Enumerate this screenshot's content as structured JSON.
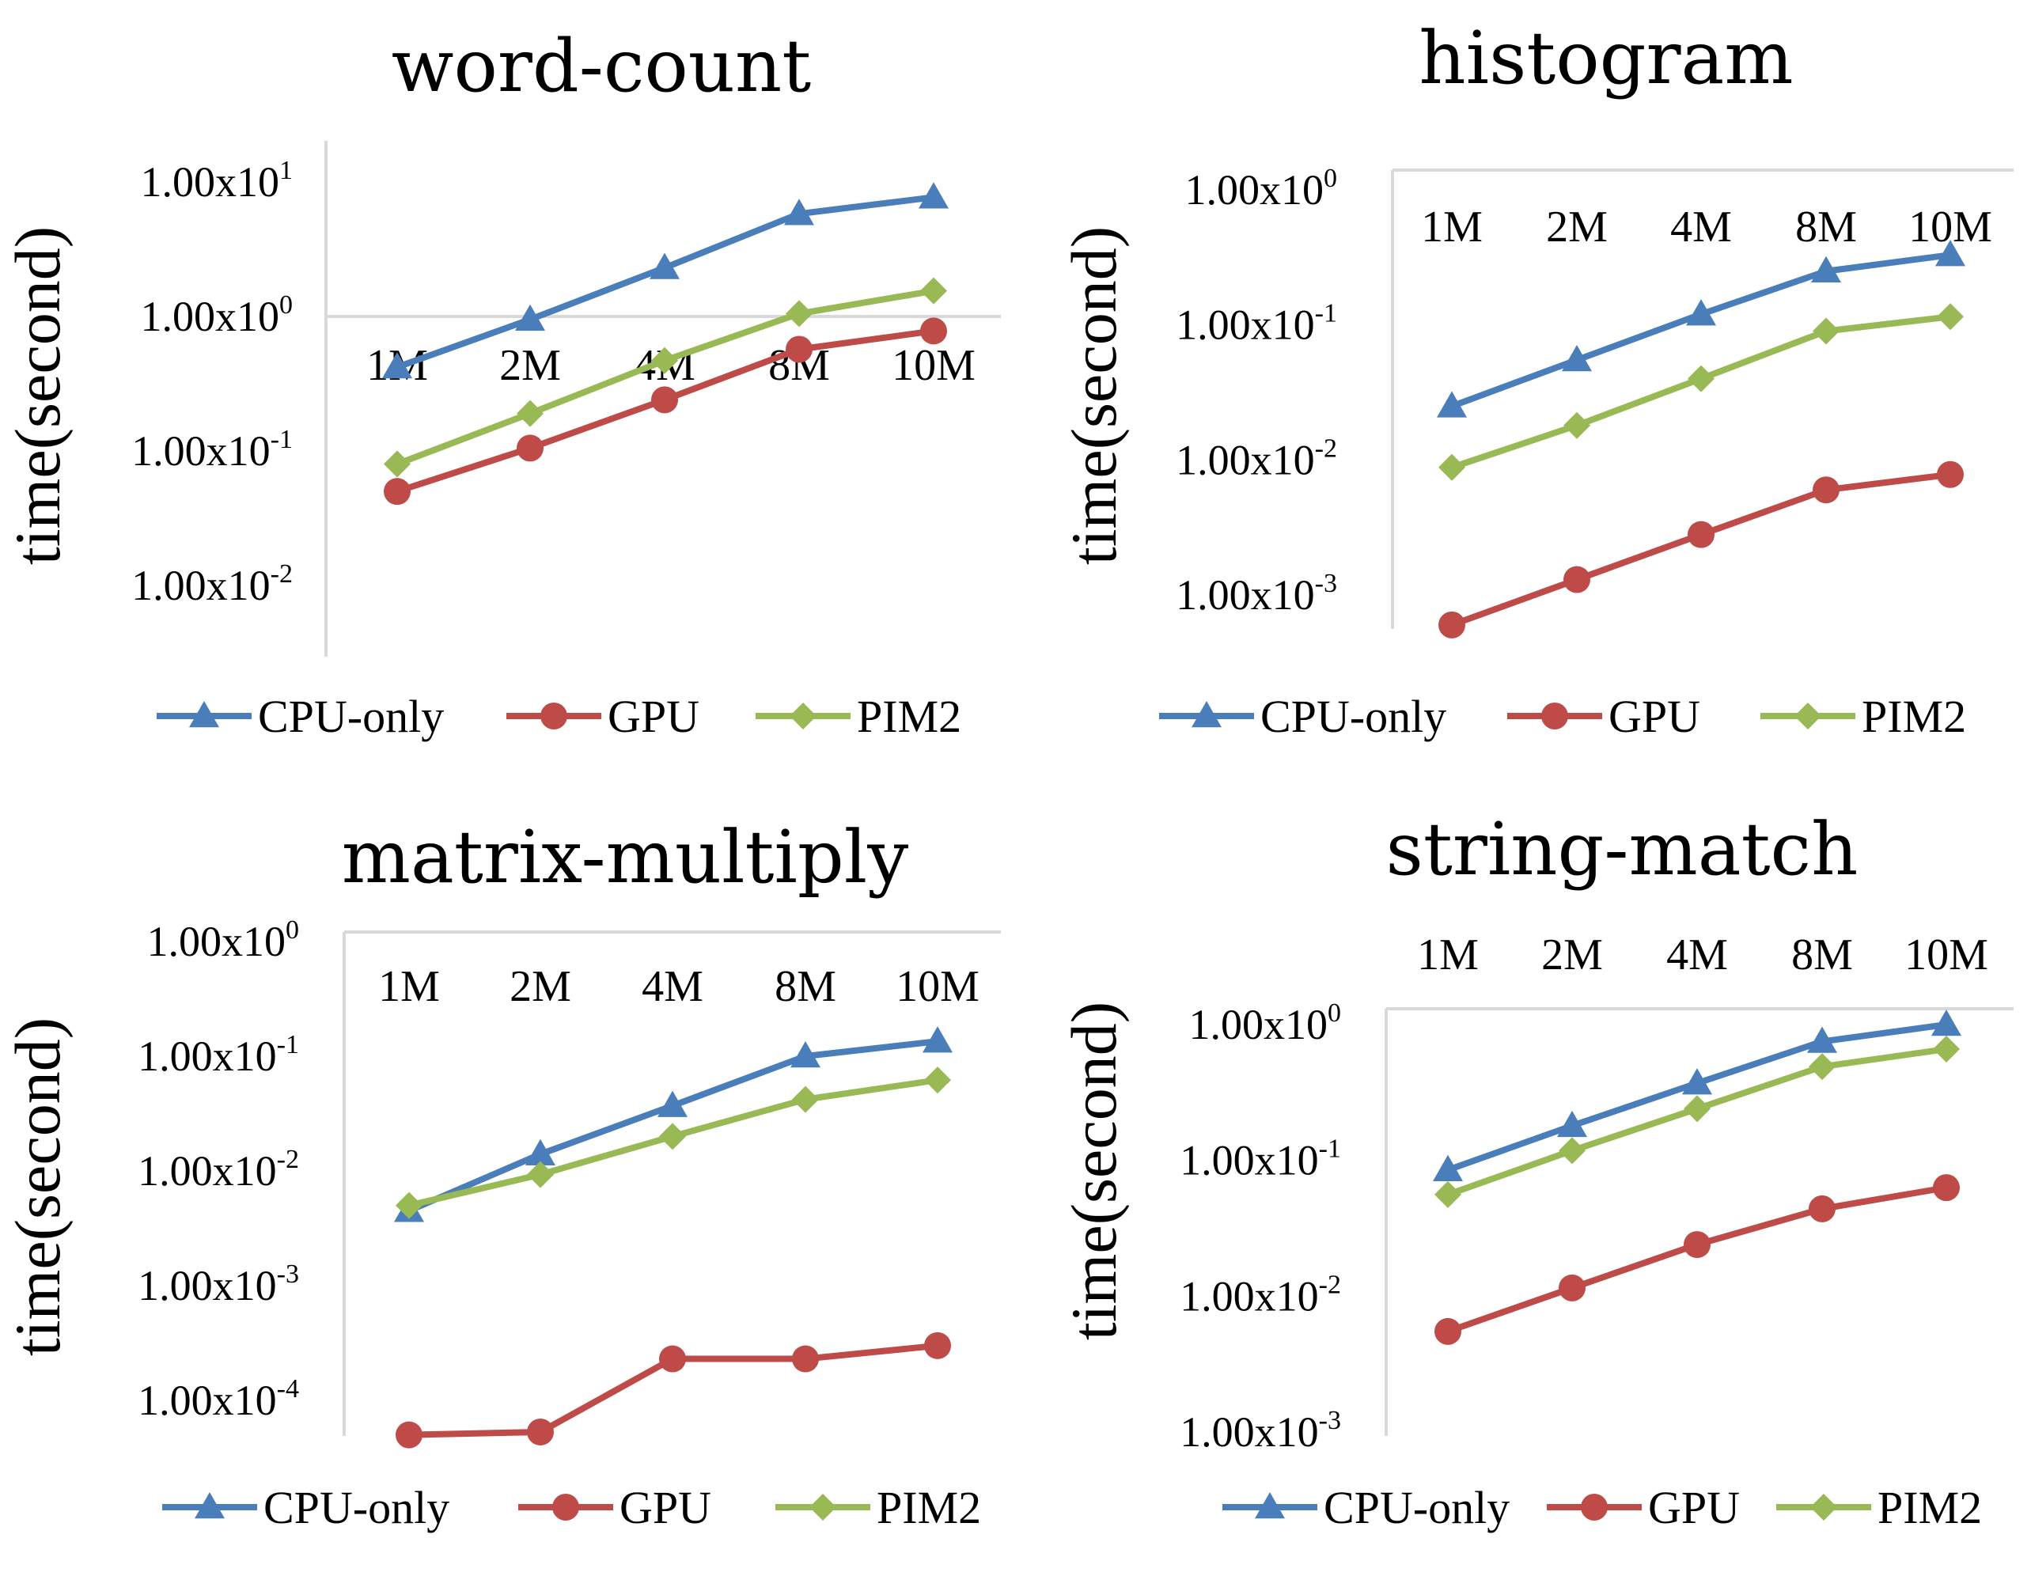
{
  "colors": {
    "CPU-only": "#4a7ebb",
    "GPU": "#be4b48",
    "PIM2": "#98b954",
    "axis": "#d9d9d9"
  },
  "chart_data": [
    {
      "type": "line",
      "title": "word-count",
      "ylabel": "time(second)",
      "yscale": "log",
      "ylim": [
        0.01,
        10
      ],
      "yticks": [
        {
          "base": "1.00x10",
          "exp": "1"
        },
        {
          "base": "1.00x10",
          "exp": "0"
        },
        {
          "base": "1.00x10",
          "exp": "-1"
        },
        {
          "base": "1.00x10",
          "exp": "-2"
        }
      ],
      "categories": [
        "1M",
        "2M",
        "4M",
        "8M",
        "10M"
      ],
      "category_axis_at": 1,
      "legend": "bottom",
      "series": [
        {
          "name": "CPU-only",
          "marker": "triangle",
          "values": [
            0.42,
            0.95,
            2.3,
            5.8,
            7.7
          ]
        },
        {
          "name": "GPU",
          "marker": "circle",
          "values": [
            0.05,
            0.105,
            0.24,
            0.57,
            0.78
          ]
        },
        {
          "name": "PIM2",
          "marker": "diamond",
          "values": [
            0.08,
            0.19,
            0.47,
            1.05,
            1.55
          ]
        }
      ]
    },
    {
      "type": "line",
      "title": "histogram",
      "ylabel": "time(second)",
      "yscale": "log",
      "ylim": [
        0.001,
        1
      ],
      "yticks": [
        {
          "base": "1.00x10",
          "exp": "0"
        },
        {
          "base": "1.00x10",
          "exp": "-1"
        },
        {
          "base": "1.00x10",
          "exp": "-2"
        },
        {
          "base": "1.00x10",
          "exp": "-3"
        }
      ],
      "categories": [
        "1M",
        "2M",
        "4M",
        "8M",
        "10M"
      ],
      "category_axis_at": 1,
      "legend": "bottom",
      "series": [
        {
          "name": "CPU-only",
          "marker": "triangle",
          "values": [
            0.025,
            0.055,
            0.12,
            0.25,
            0.33
          ]
        },
        {
          "name": "GPU",
          "marker": "circle",
          "values": [
            0.0006,
            0.0013,
            0.0028,
            0.006,
            0.0078
          ]
        },
        {
          "name": "PIM2",
          "marker": "diamond",
          "values": [
            0.0088,
            0.018,
            0.04,
            0.09,
            0.115
          ]
        }
      ]
    },
    {
      "type": "line",
      "title": "matrix-multiply",
      "ylabel": "time(second)",
      "yscale": "log",
      "ylim": [
        5e-05,
        1
      ],
      "yticks": [
        {
          "base": "1.00x10",
          "exp": "0"
        },
        {
          "base": "1.00x10",
          "exp": "-1"
        },
        {
          "base": "1.00x10",
          "exp": "-2"
        },
        {
          "base": "1.00x10",
          "exp": "-3"
        },
        {
          "base": "1.00x10",
          "exp": "-4"
        }
      ],
      "categories": [
        "1M",
        "2M",
        "4M",
        "8M",
        "10M"
      ],
      "category_axis_at": 1,
      "legend": "bottom",
      "series": [
        {
          "name": "CPU-only",
          "marker": "triangle",
          "values": [
            0.0045,
            0.014,
            0.037,
            0.1,
            0.135
          ]
        },
        {
          "name": "GPU",
          "marker": "circle",
          "values": [
            5e-05,
            5.3e-05,
            0.00023,
            0.00023,
            0.0003
          ]
        },
        {
          "name": "PIM2",
          "marker": "diamond",
          "values": [
            0.005,
            0.0093,
            0.02,
            0.042,
            0.062
          ]
        }
      ]
    },
    {
      "type": "line",
      "title": "string-match",
      "ylabel": "time(second)",
      "yscale": "log",
      "ylim": [
        0.001,
        1
      ],
      "yticks": [
        {
          "base": "1.00x10",
          "exp": "0"
        },
        {
          "base": "1.00x10",
          "exp": "-1"
        },
        {
          "base": "1.00x10",
          "exp": "-2"
        },
        {
          "base": "1.00x10",
          "exp": "-3"
        }
      ],
      "categories": [
        "1M",
        "2M",
        "4M",
        "8M",
        "10M"
      ],
      "category_axis_at": 1,
      "legend": "bottom",
      "series": [
        {
          "name": "CPU-only",
          "marker": "triangle",
          "values": [
            0.085,
            0.18,
            0.37,
            0.75,
            1.0
          ]
        },
        {
          "name": "GPU",
          "marker": "circle",
          "values": [
            0.0055,
            0.0115,
            0.024,
            0.044,
            0.063
          ]
        },
        {
          "name": "PIM2",
          "marker": "diamond",
          "values": [
            0.056,
            0.118,
            0.24,
            0.49,
            0.66
          ]
        }
      ]
    }
  ]
}
